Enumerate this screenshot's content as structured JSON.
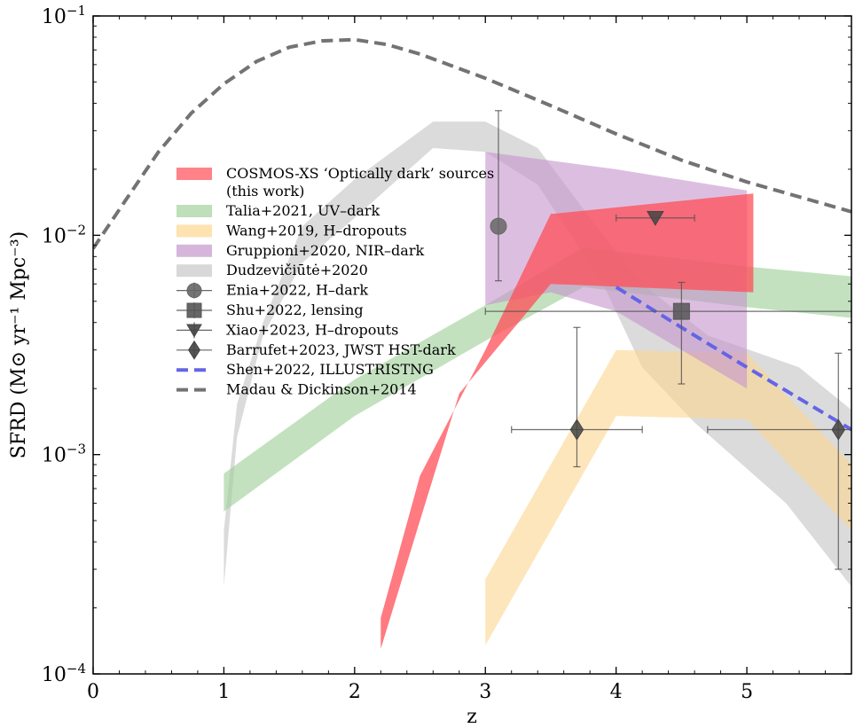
{
  "chart_data": {
    "type": "area",
    "xlabel": "z",
    "ylabel": "SFRD (M⊙ yr⁻¹ Mpc⁻³)",
    "xlim": [
      0,
      5.8
    ],
    "ylim": [
      0.0001,
      0.1
    ],
    "yscale": "log",
    "grid": false,
    "legend_position": "upper-left",
    "xticks": [
      {
        "value": 0,
        "label": "0"
      },
      {
        "value": 1,
        "label": "1"
      },
      {
        "value": 2,
        "label": "2"
      },
      {
        "value": 3,
        "label": "3"
      },
      {
        "value": 4,
        "label": "4"
      },
      {
        "value": 5,
        "label": "5"
      }
    ],
    "yticks": [
      {
        "value": 0.0001,
        "base": "10",
        "exp": "−4"
      },
      {
        "value": 0.001,
        "base": "10",
        "exp": "−3"
      },
      {
        "value": 0.01,
        "base": "10",
        "exp": "−2"
      },
      {
        "value": 0.1,
        "base": "10",
        "exp": "−1"
      }
    ],
    "bands": [
      {
        "name": "Dudzevičiūtė+2020",
        "color": "#c8c8c8",
        "opacity": 0.65,
        "upper": [
          [
            1.0,
            0.00045
          ],
          [
            1.1,
            0.0017
          ],
          [
            1.3,
            0.004
          ],
          [
            1.6,
            0.011
          ],
          [
            2.0,
            0.018
          ],
          [
            2.6,
            0.033
          ],
          [
            3.0,
            0.033
          ],
          [
            3.4,
            0.025
          ],
          [
            3.9,
            0.01
          ],
          [
            4.2,
            0.006
          ],
          [
            4.7,
            0.0035
          ],
          [
            5.4,
            0.0025
          ],
          [
            5.8,
            0.0016
          ]
        ],
        "lower": [
          [
            1.0,
            0.00025
          ],
          [
            1.1,
            0.0012
          ],
          [
            1.3,
            0.0035
          ],
          [
            1.6,
            0.0075
          ],
          [
            2.0,
            0.012
          ],
          [
            2.6,
            0.025
          ],
          [
            3.0,
            0.024
          ],
          [
            3.4,
            0.017
          ],
          [
            3.9,
            0.006
          ],
          [
            4.2,
            0.0025
          ],
          [
            4.6,
            0.0014
          ],
          [
            5.3,
            0.0006
          ],
          [
            5.8,
            0.00025
          ]
        ]
      },
      {
        "name": "Talia+2021, UV–dark",
        "color": "#a3d19c",
        "opacity": 0.65,
        "upper": [
          [
            1.0,
            0.00082
          ],
          [
            2.0,
            0.0022
          ],
          [
            3.0,
            0.0048
          ],
          [
            3.75,
            0.0088
          ],
          [
            5.0,
            0.0072
          ],
          [
            5.8,
            0.0065
          ]
        ],
        "lower": [
          [
            1.0,
            0.00055
          ],
          [
            2.0,
            0.0015
          ],
          [
            3.0,
            0.0033
          ],
          [
            3.75,
            0.0058
          ],
          [
            5.0,
            0.0047
          ],
          [
            5.8,
            0.0042
          ]
        ]
      },
      {
        "name": "Wang+2019, H–dropouts",
        "color": "#fdd68f",
        "opacity": 0.6,
        "upper": [
          [
            3.0,
            0.00027
          ],
          [
            4.0,
            0.003
          ],
          [
            5.0,
            0.0029
          ],
          [
            5.8,
            0.0009
          ]
        ],
        "lower": [
          [
            3.0,
            0.000135
          ],
          [
            4.0,
            0.0015
          ],
          [
            5.0,
            0.00145
          ],
          [
            5.8,
            0.00045
          ]
        ]
      },
      {
        "name": "Gruppioni+2020, NIR–dark",
        "color": "#c595cc",
        "opacity": 0.6,
        "upper": [
          [
            3.0,
            0.024
          ],
          [
            4.0,
            0.02
          ],
          [
            5.0,
            0.016
          ]
        ],
        "lower": [
          [
            3.0,
            0.0048
          ],
          [
            3.5,
            0.0055
          ],
          [
            4.0,
            0.0045
          ],
          [
            5.0,
            0.002
          ]
        ]
      },
      {
        "name": "COSMOS-XS ‘Optically dark’ sources (this work)",
        "color": "#ff4d57",
        "opacity": 0.75,
        "upper": [
          [
            2.2,
            0.00018
          ],
          [
            2.5,
            0.0008
          ],
          [
            3.0,
            0.003
          ],
          [
            3.5,
            0.0125
          ],
          [
            5.05,
            0.0155
          ]
        ],
        "lower": [
          [
            2.2,
            0.00013
          ],
          [
            2.5,
            0.0005
          ],
          [
            2.8,
            0.0019
          ],
          [
            3.5,
            0.006
          ],
          [
            5.05,
            0.0055
          ]
        ]
      }
    ],
    "lines": [
      {
        "name": "Madau & Dickinson+2014",
        "color": "#737373",
        "dash": "13,7",
        "width": 4,
        "points": [
          [
            0,
            0.0087
          ],
          [
            0.25,
            0.0145
          ],
          [
            0.5,
            0.024
          ],
          [
            0.75,
            0.036
          ],
          [
            1.0,
            0.049
          ],
          [
            1.25,
            0.062
          ],
          [
            1.5,
            0.072
          ],
          [
            1.75,
            0.077
          ],
          [
            2.0,
            0.078
          ],
          [
            2.25,
            0.074
          ],
          [
            2.5,
            0.067
          ],
          [
            3.0,
            0.052
          ],
          [
            3.5,
            0.039
          ],
          [
            4.0,
            0.029
          ],
          [
            4.5,
            0.022
          ],
          [
            5.0,
            0.0175
          ],
          [
            5.8,
            0.0128
          ]
        ]
      },
      {
        "name": "Shen+2022, IllustrisTNG",
        "color": "#6464e6",
        "dash": "13,7",
        "width": 4,
        "points": [
          [
            4.0,
            0.0058
          ],
          [
            4.5,
            0.0038
          ],
          [
            5.0,
            0.0025
          ],
          [
            5.8,
            0.0013
          ]
        ]
      }
    ],
    "points": [
      {
        "name": "Enia+2022, H–dark",
        "marker": "circle",
        "x": 3.1,
        "y": 0.011,
        "yerr": [
          0.0062,
          0.037
        ],
        "color": "#666666"
      },
      {
        "name": "Shu+2022, lensing",
        "marker": "square",
        "x": 4.5,
        "y": 0.0045,
        "xerr": [
          3.0,
          5.8
        ],
        "yerr": [
          0.0021,
          0.0061
        ],
        "color": "#555555"
      },
      {
        "name": "Xiao+2023, H–dropouts",
        "marker": "triangle-down",
        "x": 4.3,
        "y": 0.012,
        "xerr": [
          4.0,
          4.6
        ],
        "color": "#444444"
      },
      {
        "name": "Barrufet+2023, JWST HST-dark",
        "marker": "diamond",
        "x": 3.7,
        "y": 0.0013,
        "xerr": [
          3.2,
          4.2
        ],
        "yerr": [
          0.00088,
          0.0038
        ],
        "color": "#444444"
      },
      {
        "name": "Barrufet+2023, JWST HST-dark",
        "marker": "diamond",
        "x": 5.7,
        "y": 0.0013,
        "xerr": [
          4.7,
          5.8
        ],
        "yerr": [
          0.0003,
          0.0029
        ],
        "color": "#444444"
      }
    ],
    "legend": [
      {
        "kind": "patch",
        "color": "#ff4d57",
        "lines": [
          "COSMOS-XS ‘Optically dark’ sources",
          "(this work)"
        ]
      },
      {
        "kind": "patch",
        "color": "#a3d19c",
        "lines": [
          "Talia+2021, UV–dark"
        ]
      },
      {
        "kind": "patch",
        "color": "#fdd68f",
        "lines": [
          "Wang+2019, H–dropouts"
        ]
      },
      {
        "kind": "patch",
        "color": "#c595cc",
        "lines": [
          "Gruppioni+2020, NIR–dark"
        ]
      },
      {
        "kind": "patch",
        "color": "#c8c8c8",
        "lines": [
          "Dudzevičiūtė+2020"
        ]
      },
      {
        "kind": "circle",
        "color": "#666666",
        "lines": [
          "Enia+2022, H–dark"
        ]
      },
      {
        "kind": "square",
        "color": "#555555",
        "lines": [
          "Shu+2022, lensing"
        ]
      },
      {
        "kind": "triangle-down",
        "color": "#444444",
        "lines": [
          "Xiao+2023, H–dropouts"
        ]
      },
      {
        "kind": "diamond",
        "color": "#444444",
        "lines": [
          "Barrufet+2023, JWST HST-dark"
        ]
      },
      {
        "kind": "line",
        "color": "#6464e6",
        "lines": [
          "Shen+2022, ILLUSTRISTNG"
        ]
      },
      {
        "kind": "line",
        "color": "#737373",
        "lines": [
          "Madau & Dickinson+2014"
        ]
      }
    ]
  }
}
